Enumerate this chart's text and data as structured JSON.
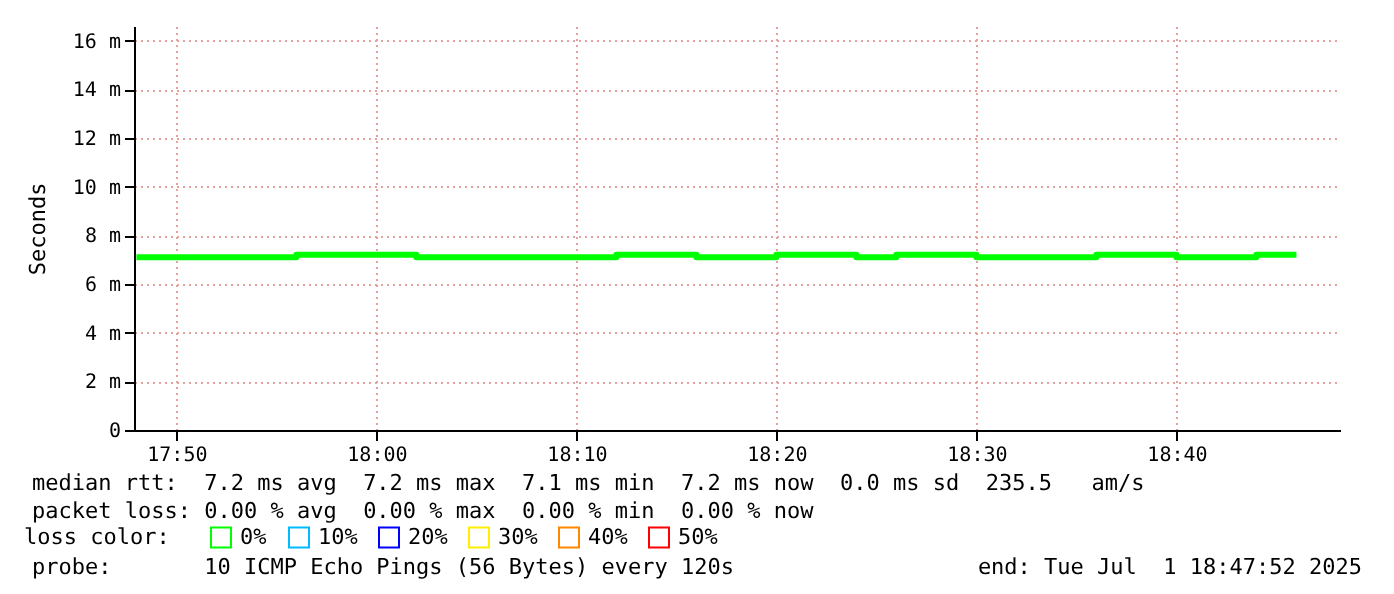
{
  "chart_data": {
    "type": "step",
    "ylabel": "Seconds",
    "legend_title": "loss color:",
    "legend": "bottom",
    "x": [
      17.8,
      17.8333,
      17.8667,
      17.9,
      17.9333,
      17.9667,
      18.0,
      18.0333,
      18.0667,
      18.1,
      18.1333,
      18.1667,
      18.2,
      18.2333,
      18.2667,
      18.3,
      18.3333,
      18.3667,
      18.4,
      18.4333,
      18.4667,
      18.5,
      18.5333,
      18.5667,
      18.6,
      18.6333,
      18.6667,
      18.7,
      18.7333,
      18.7667
    ],
    "series": [
      {
        "name": "0%",
        "color": "#00ff00",
        "values": [
          7.1,
          7.1,
          7.1,
          7.1,
          7.2,
          7.2,
          7.2,
          7.1,
          7.1,
          7.1,
          7.1,
          7.1,
          7.2,
          7.2,
          7.1,
          7.1,
          7.2,
          7.2,
          7.1,
          7.2,
          7.2,
          7.1,
          7.1,
          7.1,
          7.2,
          7.2,
          7.1,
          7.1,
          7.2,
          7.2
        ]
      },
      {
        "name": "10%",
        "color": "#00bbff",
        "values": [
          null,
          null,
          null,
          null,
          null,
          null,
          null,
          null,
          null,
          null,
          null,
          null,
          null,
          null,
          null,
          null,
          null,
          null,
          null,
          null,
          null,
          null,
          null,
          null,
          null,
          null,
          null,
          null,
          null,
          null
        ]
      },
      {
        "name": "20%",
        "color": "#0000ff",
        "values": [
          null,
          null,
          null,
          null,
          null,
          null,
          null,
          null,
          null,
          null,
          null,
          null,
          null,
          null,
          null,
          null,
          null,
          null,
          null,
          null,
          null,
          null,
          null,
          null,
          null,
          null,
          null,
          null,
          null,
          null
        ]
      },
      {
        "name": "30%",
        "color": "#ffee00",
        "values": [
          null,
          null,
          null,
          null,
          null,
          null,
          null,
          null,
          null,
          null,
          null,
          null,
          null,
          null,
          null,
          null,
          null,
          null,
          null,
          null,
          null,
          null,
          null,
          null,
          null,
          null,
          null,
          null,
          null,
          null
        ]
      },
      {
        "name": "40%",
        "color": "#ff8800",
        "values": [
          null,
          null,
          null,
          null,
          null,
          null,
          null,
          null,
          null,
          null,
          null,
          null,
          null,
          null,
          null,
          null,
          null,
          null,
          null,
          null,
          null,
          null,
          null,
          null,
          null,
          null,
          null,
          null,
          null,
          null
        ]
      },
      {
        "name": "50%",
        "color": "#ff0000",
        "values": [
          null,
          null,
          null,
          null,
          null,
          null,
          null,
          null,
          null,
          null,
          null,
          null,
          null,
          null,
          null,
          null,
          null,
          null,
          null,
          null,
          null,
          null,
          null,
          null,
          null,
          null,
          null,
          null,
          null,
          null
        ]
      }
    ],
    "xlim": [
      17.798,
      18.803
    ],
    "xticks": [
      {
        "value": 17.8333,
        "label": "17:50"
      },
      {
        "value": 18.0,
        "label": "18:00"
      },
      {
        "value": 18.1667,
        "label": "18:10"
      },
      {
        "value": 18.3333,
        "label": "18:20"
      },
      {
        "value": 18.5,
        "label": "18:30"
      },
      {
        "value": 18.6667,
        "label": "18:40"
      }
    ],
    "ylim": [
      0,
      16.6
    ],
    "yticks": [
      {
        "value": 0,
        "label": "0"
      },
      {
        "value": 2,
        "label": "2 m"
      },
      {
        "value": 4,
        "label": "4 m"
      },
      {
        "value": 6,
        "label": "6 m"
      },
      {
        "value": 8,
        "label": "8 m"
      },
      {
        "value": 10,
        "label": "10 m"
      },
      {
        "value": 12,
        "label": "12 m"
      },
      {
        "value": 14,
        "label": "14 m"
      },
      {
        "value": 16,
        "label": "16 m"
      }
    ],
    "grid": true,
    "annotations": [
      "median rtt:  7.2 ms avg  7.2 ms max  7.1 ms min  7.2 ms now  0.0 ms sd  235.5   am/s",
      "packet loss: 0.00 % avg  0.00 % max  0.00 % min  0.00 % now",
      "probe:       10 ICMP Echo Pings (56 Bytes) every 120s",
      "end: Tue Jul  1 18:47:52 2025"
    ]
  }
}
